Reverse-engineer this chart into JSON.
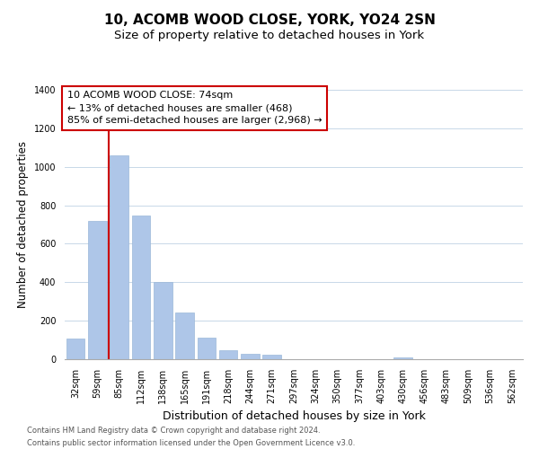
{
  "title": "10, ACOMB WOOD CLOSE, YORK, YO24 2SN",
  "subtitle": "Size of property relative to detached houses in York",
  "xlabel": "Distribution of detached houses by size in York",
  "ylabel": "Number of detached properties",
  "bar_labels": [
    "32sqm",
    "59sqm",
    "85sqm",
    "112sqm",
    "138sqm",
    "165sqm",
    "191sqm",
    "218sqm",
    "244sqm",
    "271sqm",
    "297sqm",
    "324sqm",
    "350sqm",
    "377sqm",
    "403sqm",
    "430sqm",
    "456sqm",
    "483sqm",
    "509sqm",
    "536sqm",
    "562sqm"
  ],
  "bar_values": [
    108,
    720,
    1060,
    748,
    400,
    243,
    110,
    49,
    28,
    22,
    0,
    0,
    0,
    0,
    0,
    10,
    0,
    0,
    0,
    0,
    0
  ],
  "bar_color": "#aec6e8",
  "bar_edge_color": "#9ab8d8",
  "vline_color": "#cc0000",
  "ylim": [
    0,
    1400
  ],
  "yticks": [
    0,
    200,
    400,
    600,
    800,
    1000,
    1200,
    1400
  ],
  "annotation_line1": "10 ACOMB WOOD CLOSE: 74sqm",
  "annotation_line2": "← 13% of detached houses are smaller (468)",
  "annotation_line3": "85% of semi-detached houses are larger (2,968) →",
  "annotation_box_color": "#ffffff",
  "annotation_border_color": "#cc0000",
  "footer_line1": "Contains HM Land Registry data © Crown copyright and database right 2024.",
  "footer_line2": "Contains public sector information licensed under the Open Government Licence v3.0.",
  "background_color": "#ffffff",
  "grid_color": "#c8d8e8",
  "title_fontsize": 11,
  "subtitle_fontsize": 9.5,
  "ylabel_fontsize": 8.5,
  "xlabel_fontsize": 9,
  "tick_fontsize": 7,
  "annot_fontsize": 8,
  "footer_fontsize": 6
}
